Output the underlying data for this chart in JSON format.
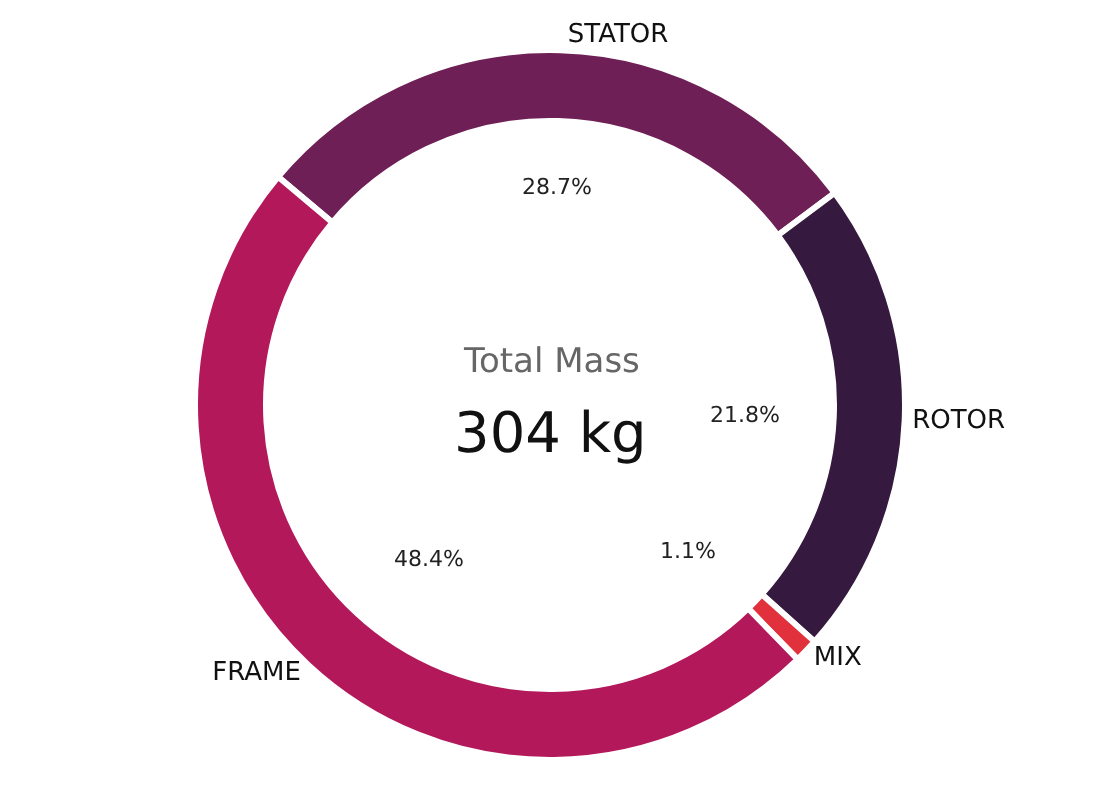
{
  "chart_data": {
    "type": "donut",
    "categories": [
      "STATOR",
      "ROTOR",
      "MIX",
      "FRAME"
    ],
    "values": [
      28.7,
      21.8,
      1.1,
      48.4
    ],
    "colors": [
      "#6e1f55",
      "#35193e",
      "#e0313d",
      "#b3185a"
    ],
    "value_labels": [
      "28.7%",
      "21.8%",
      "1.1%",
      "48.4%"
    ],
    "annotations": [
      "Total Mass",
      "304 kg"
    ],
    "legend": false
  }
}
